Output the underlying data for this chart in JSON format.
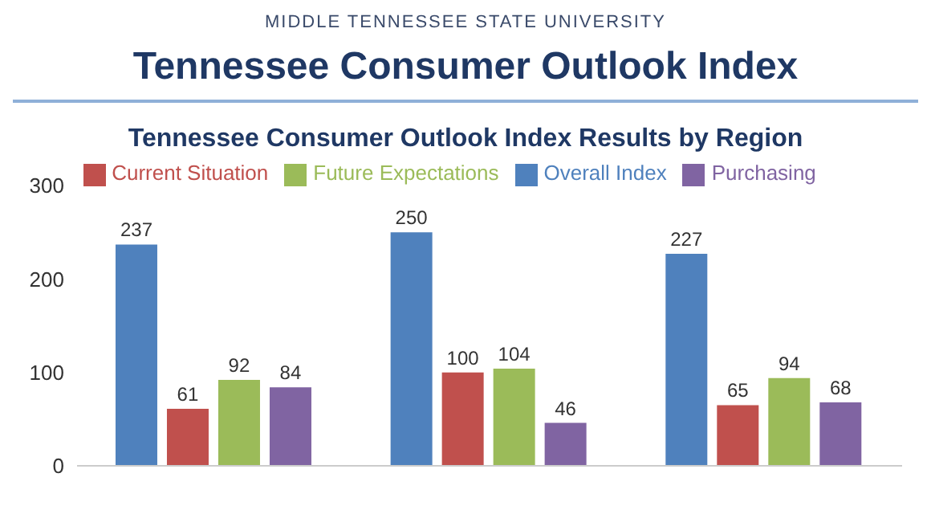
{
  "chart_data": {
    "type": "bar",
    "title": "Tennessee Consumer Outlook Index",
    "subtitle": "Tennessee Consumer Outlook Index Results by Region",
    "annotations": [
      "MIDDLE TENNESSEE STATE UNIVERSITY"
    ],
    "categories": [
      null,
      null,
      null
    ],
    "series": [
      {
        "name": "Overall Index",
        "color": "#4f81bd",
        "values": [
          237,
          250,
          227
        ]
      },
      {
        "name": "Current Situation",
        "color": "#c0504d",
        "values": [
          61,
          100,
          65
        ]
      },
      {
        "name": "Future Expectations",
        "color": "#9bbb59",
        "values": [
          92,
          104,
          94
        ]
      },
      {
        "name": "Purchasing",
        "color": "#8064a2",
        "values": [
          84,
          46,
          68
        ]
      }
    ],
    "ylim": [
      0,
      300
    ],
    "yticks": [
      0,
      100,
      200,
      300
    ],
    "grid": false,
    "legend": "top",
    "data_labels": true
  }
}
